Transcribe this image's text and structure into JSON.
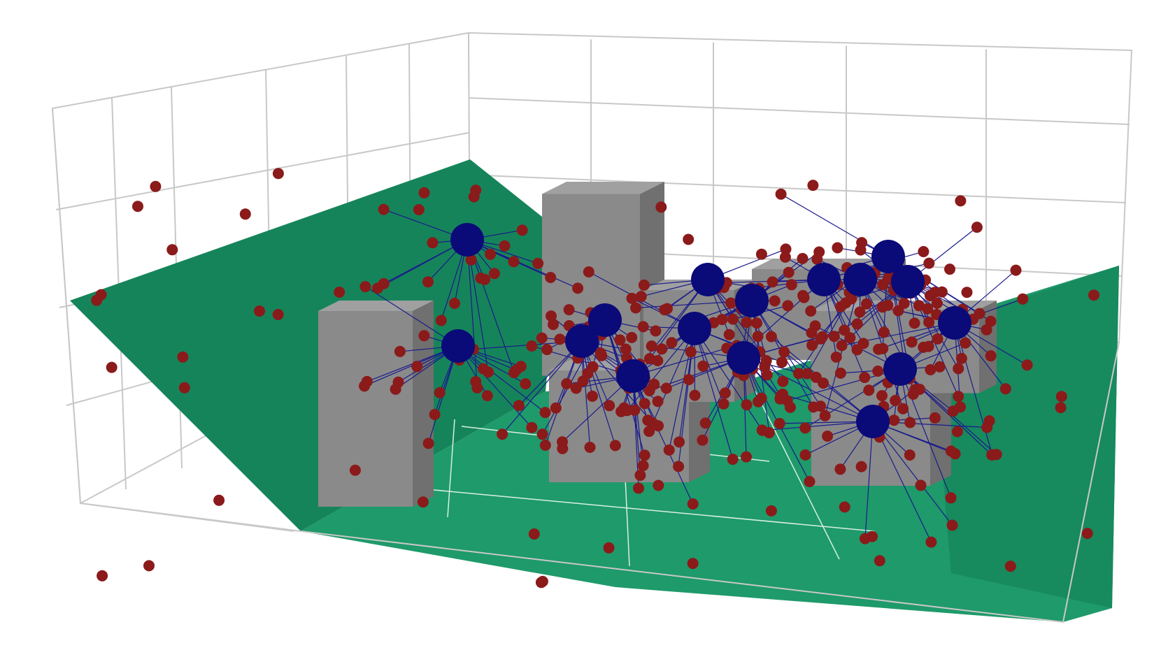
{
  "scene": {
    "kind": "3d-network-placement",
    "colors": {
      "ground": "#1f9a6a",
      "ground_dark": "#16845a",
      "building": "#8a8a8a",
      "building_light": "#a0a0a0",
      "building_dark": "#707070",
      "grid": "#c8c8c8",
      "hub": "#0a0a78",
      "node": "#8b1a1a",
      "link": "#1a1a8c"
    },
    "grid_visible": true,
    "hubs_count": 15,
    "nodes_approx": 300
  }
}
